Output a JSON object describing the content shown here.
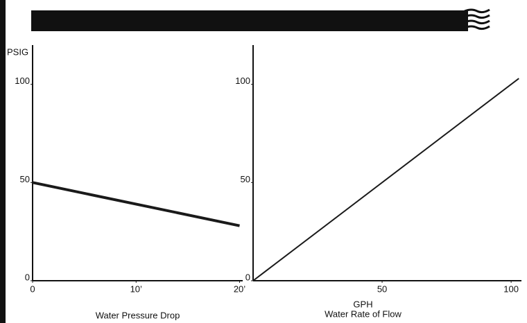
{
  "chart_data": [
    {
      "type": "line",
      "ylabel": "PSIG",
      "xlabel": "Water Pressure Drop",
      "x": [
        0,
        20
      ],
      "values": [
        50,
        28
      ],
      "color": "#1a1a1a",
      "xlim": [
        0,
        20.3
      ],
      "xticks": [
        0,
        {
          "value": 10,
          "label": "10’"
        },
        {
          "value": 20,
          "label": "20’"
        }
      ],
      "ylim": [
        0,
        120
      ],
      "yticks": [
        0,
        50,
        100
      ],
      "grid": false
    },
    {
      "type": "line",
      "xlabel": [
        "GPH",
        "Water Rate of Flow"
      ],
      "x": [
        0,
        103
      ],
      "values": [
        0,
        103
      ],
      "color": "#1a1a1a",
      "xlim": [
        0,
        104
      ],
      "xticks": [
        50,
        100
      ],
      "ylim": [
        0,
        120
      ],
      "yticks": [
        0,
        50,
        100
      ],
      "grid": false
    }
  ]
}
